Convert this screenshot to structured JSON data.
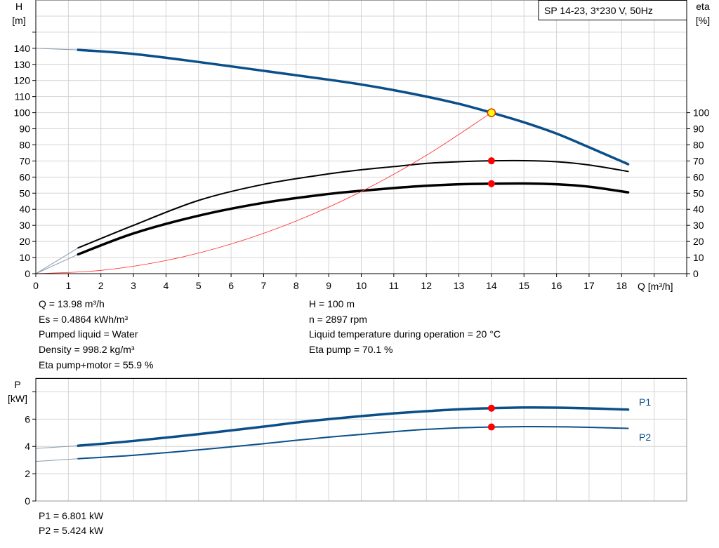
{
  "chart_data": [
    {
      "type": "line",
      "title": "SP 14-23, 3*230 V, 50Hz",
      "xlabel": "Q [m³/h]",
      "ylabel_left": [
        "H",
        "[m]"
      ],
      "ylabel_right": [
        "eta",
        "[%]"
      ],
      "xlim": [
        0,
        20
      ],
      "ylim_left": [
        0,
        170
      ],
      "ylim_right": [
        0,
        170
      ],
      "x_ticks": [
        "0",
        "1",
        "2",
        "3",
        "4",
        "5",
        "6",
        "7",
        "8",
        "9",
        "10",
        "11",
        "12",
        "13",
        "14",
        "15",
        "16",
        "17",
        "18"
      ],
      "y_ticks_left": [
        "0",
        "10",
        "20",
        "30",
        "40",
        "50",
        "60",
        "70",
        "80",
        "90",
        "100",
        "110",
        "120",
        "130",
        "140"
      ],
      "y_ticks_right": [
        "0",
        "10",
        "20",
        "30",
        "40",
        "50",
        "60",
        "70",
        "80",
        "90",
        "100"
      ],
      "grid": true,
      "series": [
        {
          "key": "H",
          "color": "#0b4f8a",
          "x": [
            0,
            1.3,
            3,
            5,
            7,
            9,
            10,
            11,
            12,
            13,
            14,
            15,
            16,
            17,
            18.2
          ],
          "y": [
            140,
            139,
            136.5,
            131.5,
            126,
            120.5,
            117.5,
            114,
            110,
            105.5,
            100,
            94,
            87,
            78.5,
            68
          ]
        },
        {
          "key": "eta_pump",
          "color": "#000000",
          "x": [
            0,
            1.3,
            3,
            5,
            7,
            9,
            10,
            11,
            12,
            13,
            14,
            15,
            16,
            17,
            18.2
          ],
          "y": [
            0,
            16,
            30,
            45.5,
            55.5,
            62,
            64.5,
            66.5,
            68.5,
            69.5,
            70.1,
            70.2,
            69.5,
            67.5,
            63.5
          ]
        },
        {
          "key": "eta_pump_motor",
          "color": "#000000",
          "x": [
            0,
            1.3,
            3,
            5,
            7,
            9,
            10,
            11,
            12,
            13,
            14,
            15,
            16,
            17,
            18.2
          ],
          "y": [
            0,
            12,
            25,
            36,
            44,
            49.5,
            51.5,
            53.2,
            54.6,
            55.5,
            55.9,
            56,
            55.5,
            54,
            50.5
          ]
        },
        {
          "key": "system",
          "color": "#ff2a2a",
          "x": [
            0,
            2,
            4,
            6,
            8,
            10,
            12,
            14
          ],
          "y": [
            0,
            2.04,
            8.16,
            18.4,
            32.7,
            51,
            73.5,
            100
          ]
        }
      ],
      "duty_points": [
        {
          "key": "H",
          "x": 14,
          "y": 100,
          "color": "#ffff00"
        },
        {
          "key": "eta_pump",
          "x": 14,
          "y": 70.1,
          "color": "#ff0000"
        },
        {
          "key": "eta_pump_motor",
          "x": 14,
          "y": 55.9,
          "color": "#ff0000"
        }
      ]
    },
    {
      "type": "line",
      "ylabel": [
        "P",
        "[kW]"
      ],
      "xlim": [
        0,
        20
      ],
      "ylim": [
        0,
        9
      ],
      "y_ticks": [
        "0",
        "2",
        "4",
        "6"
      ],
      "grid": true,
      "series": [
        {
          "name": "P1",
          "color": "#0b4f8a",
          "x": [
            0,
            1.3,
            3,
            5,
            7,
            8,
            9,
            10,
            11,
            12,
            13,
            14,
            15,
            16,
            17,
            18.2
          ],
          "y": [
            3.85,
            4.05,
            4.4,
            4.9,
            5.45,
            5.75,
            6.0,
            6.22,
            6.42,
            6.58,
            6.72,
            6.8,
            6.85,
            6.84,
            6.79,
            6.7
          ]
        },
        {
          "name": "P2",
          "color": "#0b4f8a",
          "x": [
            0,
            1.3,
            3,
            5,
            7,
            8,
            9,
            10,
            11,
            12,
            13,
            14,
            15,
            16,
            17,
            18.2
          ],
          "y": [
            2.9,
            3.1,
            3.35,
            3.75,
            4.2,
            4.45,
            4.68,
            4.88,
            5.08,
            5.25,
            5.36,
            5.42,
            5.45,
            5.44,
            5.4,
            5.32
          ]
        }
      ],
      "duty_points": [
        {
          "key": "P1",
          "x": 14,
          "y": 6.801,
          "color": "#ff0000"
        },
        {
          "key": "P2",
          "x": 14,
          "y": 5.424,
          "color": "#ff0000"
        }
      ]
    }
  ],
  "info": {
    "left": [
      "Q = 13.98 m³/h",
      "Es = 0.4864 kWh/m³",
      "Pumped liquid = Water",
      "Density = 998.2 kg/m³",
      "Eta pump+motor = 55.9 %"
    ],
    "right": [
      "H = 100 m",
      "n = 2897 rpm",
      "Liquid temperature during operation = 20 °C",
      "Eta pump = 70.1 %"
    ],
    "power": [
      "P1 = 6.801 kW",
      "P2 = 5.424 kW"
    ]
  }
}
